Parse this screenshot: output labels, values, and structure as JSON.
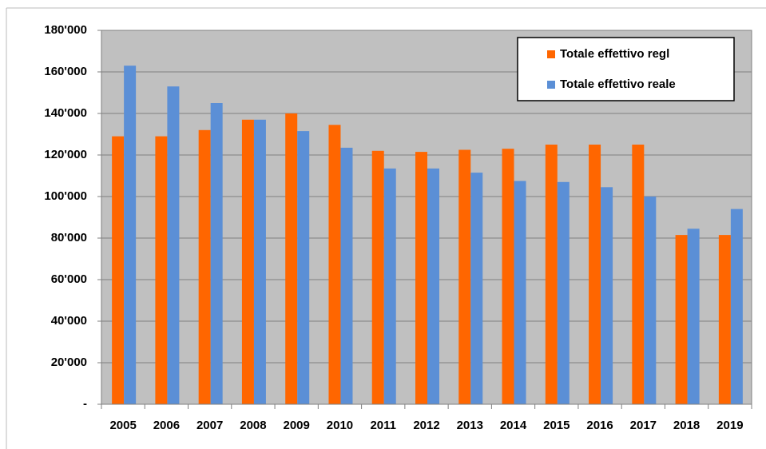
{
  "chart_data": {
    "type": "bar",
    "categories": [
      "2005",
      "2006",
      "2007",
      "2008",
      "2009",
      "2010",
      "2011",
      "2012",
      "2013",
      "2014",
      "2015",
      "2016",
      "2017",
      "2018",
      "2019"
    ],
    "series": [
      {
        "name": "Totale effettivo regl",
        "color": "#ff6600",
        "values": [
          129000,
          129000,
          132000,
          137000,
          140000,
          134500,
          122000,
          121500,
          122500,
          123000,
          125000,
          125000,
          125000,
          81500,
          81500
        ]
      },
      {
        "name": "Totale effettivo reale",
        "color": "#5b8fd6",
        "values": [
          163000,
          153000,
          145000,
          137000,
          131500,
          123500,
          113500,
          113500,
          111500,
          107500,
          107000,
          104500,
          100000,
          84500,
          94000
        ]
      }
    ],
    "ylim": [
      0,
      180000
    ],
    "yticks": [
      {
        "value": 0,
        "label": "-"
      },
      {
        "value": 20000,
        "label": "20'000"
      },
      {
        "value": 40000,
        "label": "40'000"
      },
      {
        "value": 60000,
        "label": "60'000"
      },
      {
        "value": 80000,
        "label": "80'000"
      },
      {
        "value": 100000,
        "label": "100'000"
      },
      {
        "value": 120000,
        "label": "120'000"
      },
      {
        "value": 140000,
        "label": "140'000"
      },
      {
        "value": 160000,
        "label": "160'000"
      },
      {
        "value": 180000,
        "label": "180'000"
      }
    ],
    "grid": true,
    "plot_background": "#c0c0c0",
    "legend": "top-right"
  }
}
